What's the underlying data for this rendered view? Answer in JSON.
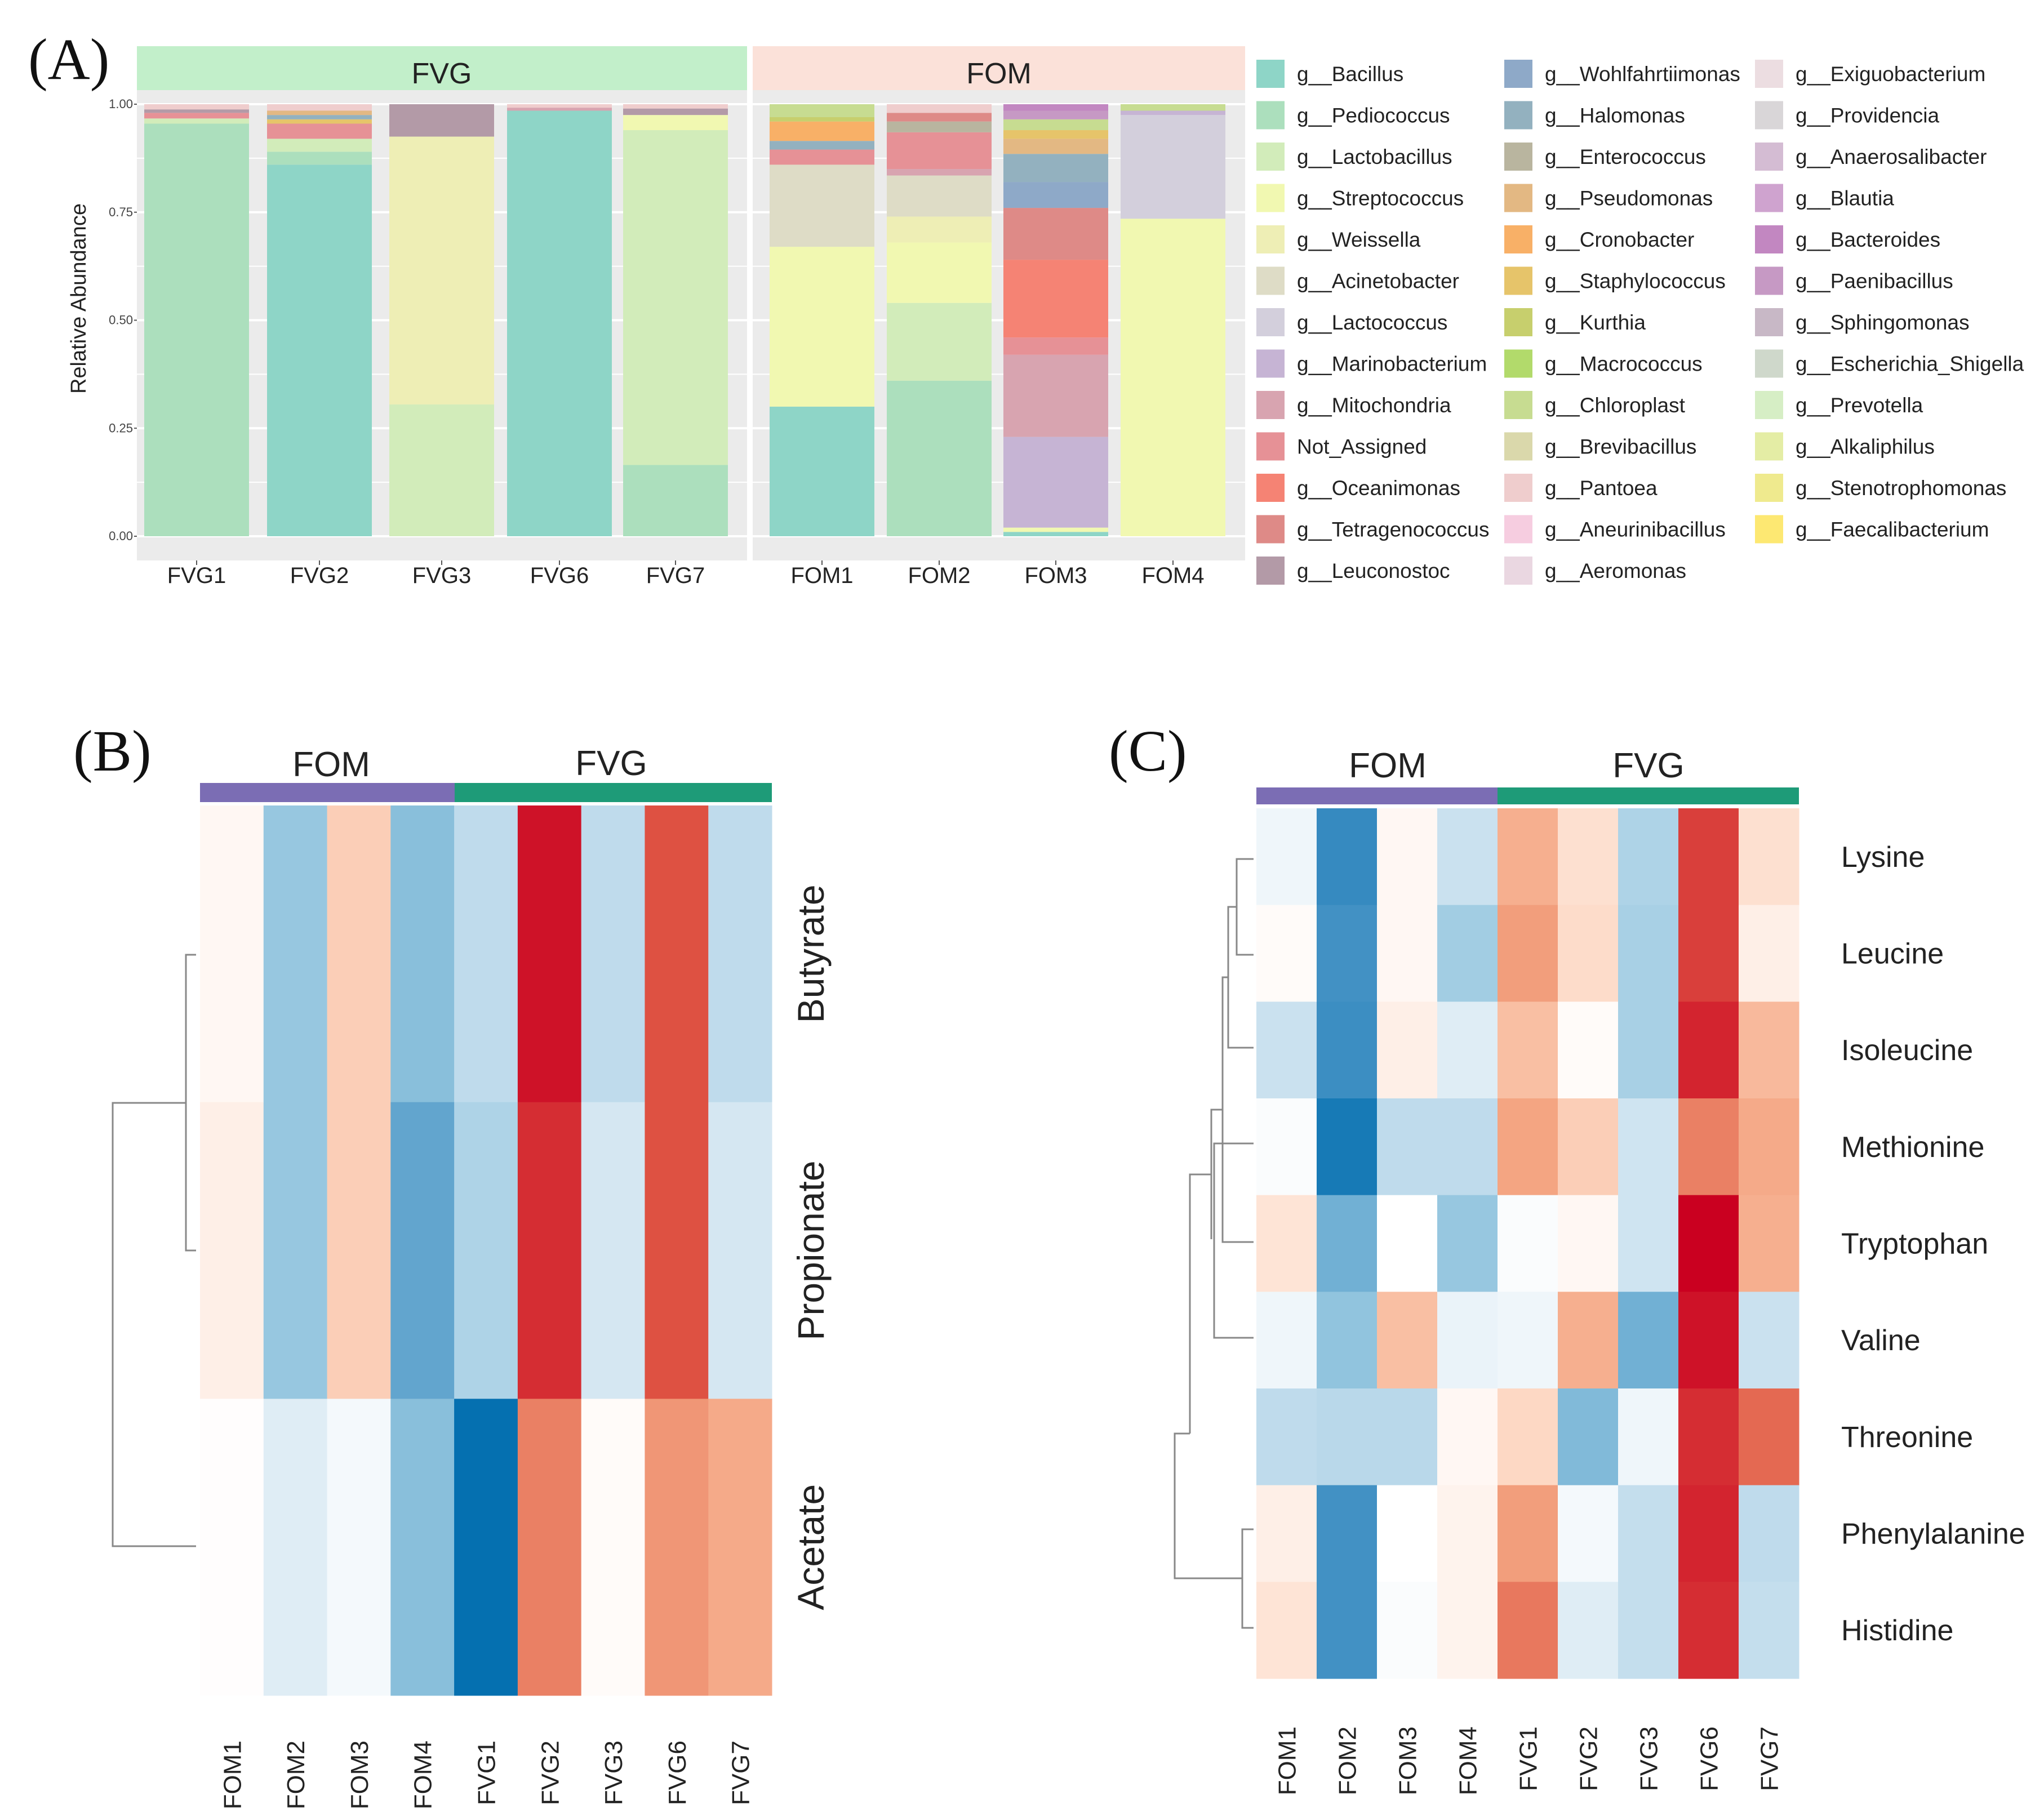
{
  "panels": {
    "a_label": "(A)",
    "b_label": "(B)",
    "c_label": "(C)"
  },
  "colors": {
    "fvg_strip": "#c2efca",
    "fom_strip": "#fbe1d9",
    "fom_bar": "#7b6db4",
    "fvg_bar": "#1e9b78",
    "panel_bg": "#ebebeb",
    "grid": "#ffffff"
  },
  "chart_data": [
    {
      "type": "bar",
      "stacked": true,
      "title": "",
      "ylabel": "Relative Abundance",
      "xlabel": "",
      "ylim": [
        0,
        1
      ],
      "yticks": [
        "0.00",
        "0.25",
        "0.50",
        "0.75",
        "1.00"
      ],
      "facets": [
        {
          "name": "FVG",
          "samples": [
            "FVG1",
            "FVG2",
            "FVG3",
            "FVG6",
            "FVG7"
          ]
        },
        {
          "name": "FOM",
          "samples": [
            "FOM1",
            "FOM2",
            "FOM3",
            "FOM4"
          ]
        }
      ],
      "legend": [
        {
          "name": "g__Bacillus",
          "color": "#8ed5c7"
        },
        {
          "name": "g__Pediococcus",
          "color": "#acdfbd"
        },
        {
          "name": "g__Lactobacillus",
          "color": "#d2ecba"
        },
        {
          "name": "g__Streptococcus",
          "color": "#f1f8b1"
        },
        {
          "name": "g__Weissella",
          "color": "#eeeeb5"
        },
        {
          "name": "g__Acinetobacter",
          "color": "#dedcc6"
        },
        {
          "name": "g__Lactococcus",
          "color": "#d3cfdc"
        },
        {
          "name": "g__Marinobacterium",
          "color": "#c6b4d4"
        },
        {
          "name": "g__Mitochondria",
          "color": "#d8a4b0"
        },
        {
          "name": "Not_Assigned",
          "color": "#e69196"
        },
        {
          "name": "g__Oceanimonas",
          "color": "#f58374"
        },
        {
          "name": "g__Tetragenococcus",
          "color": "#de8a87"
        },
        {
          "name": "g__Leuconostoc",
          "color": "#b39aa7"
        },
        {
          "name": "g__Wohlfahrtiimonas",
          "color": "#8ea9c8"
        },
        {
          "name": "g__Halomonas",
          "color": "#93b1bf"
        },
        {
          "name": "g__Enterococcus",
          "color": "#b9b59f"
        },
        {
          "name": "g__Pseudomonas",
          "color": "#e3b883"
        },
        {
          "name": "g__Cronobacter",
          "color": "#f8b067"
        },
        {
          "name": "g__Staphylococcus",
          "color": "#e6c46a"
        },
        {
          "name": "g__Kurthia",
          "color": "#c7cf6d"
        },
        {
          "name": "g__Macrococcus",
          "color": "#b2da6b"
        },
        {
          "name": "g__Chloroplast",
          "color": "#c7dc91"
        },
        {
          "name": "g__Brevibacillus",
          "color": "#dad8ab"
        },
        {
          "name": "g__Pantoea",
          "color": "#efcdcd"
        },
        {
          "name": "g__Aneurinibacillus",
          "color": "#f6cde0"
        },
        {
          "name": "g__Aeromonas",
          "color": "#ead7e1"
        },
        {
          "name": "g__Exiguobacterium",
          "color": "#ecdde1"
        },
        {
          "name": "g__Providencia",
          "color": "#d9d6d8"
        },
        {
          "name": "g__Anaerosalibacter",
          "color": "#d4bcd3"
        },
        {
          "name": "g__Blautia",
          "color": "#cfa3cf"
        },
        {
          "name": "g__Bacteroides",
          "color": "#c287c1"
        },
        {
          "name": "g__Paenibacillus",
          "color": "#c699c4"
        },
        {
          "name": "g__Sphingomonas",
          "color": "#c8b8c6"
        },
        {
          "name": "g__Escherichia_Shigella",
          "color": "#cfd8cb"
        },
        {
          "name": "g__Prevotella",
          "color": "#d6eec5"
        },
        {
          "name": "g__Alkaliphilus",
          "color": "#e4eda5"
        },
        {
          "name": "g__Stenotrophomonas",
          "color": "#efea8e"
        },
        {
          "name": "g__Faecalibacterium",
          "color": "#fde872"
        }
      ],
      "series": [
        {
          "sample": "FVG1",
          "segments": [
            [
              "g__Pediococcus",
              0.955
            ],
            [
              "g__Lactobacillus",
              0.012
            ],
            [
              "Not_Assigned",
              0.013
            ],
            [
              "g__Leuconostoc",
              0.008
            ],
            [
              "g__Pantoea",
              0.012
            ]
          ]
        },
        {
          "sample": "FVG2",
          "segments": [
            [
              "g__Bacillus",
              0.86
            ],
            [
              "g__Pediococcus",
              0.03
            ],
            [
              "g__Lactobacillus",
              0.03
            ],
            [
              "Not_Assigned",
              0.035
            ],
            [
              "g__Staphylococcus",
              0.01
            ],
            [
              "g__Halomonas",
              0.01
            ],
            [
              "g__Pseudomonas",
              0.01
            ],
            [
              "g__Pantoea",
              0.015
            ]
          ]
        },
        {
          "sample": "FVG3",
          "segments": [
            [
              "g__Lactobacillus",
              0.305
            ],
            [
              "g__Weissella",
              0.62
            ],
            [
              "g__Leuconostoc",
              0.075
            ]
          ]
        },
        {
          "sample": "FVG6",
          "segments": [
            [
              "g__Bacillus",
              0.985
            ],
            [
              "g__Mitochondria",
              0.007
            ],
            [
              "g__Pantoea",
              0.008
            ]
          ]
        },
        {
          "sample": "FVG7",
          "segments": [
            [
              "g__Pediococcus",
              0.165
            ],
            [
              "g__Lactobacillus",
              0.775
            ],
            [
              "g__Streptococcus",
              0.035
            ],
            [
              "g__Leuconostoc",
              0.015
            ],
            [
              "g__Pantoea",
              0.01
            ]
          ]
        },
        {
          "sample": "FOM1",
          "segments": [
            [
              "g__Bacillus",
              0.3
            ],
            [
              "g__Streptococcus",
              0.37
            ],
            [
              "g__Acinetobacter",
              0.19
            ],
            [
              "Not_Assigned",
              0.035
            ],
            [
              "g__Halomonas",
              0.02
            ],
            [
              "g__Cronobacter",
              0.045
            ],
            [
              "g__Kurthia",
              0.01
            ],
            [
              "g__Chloroplast",
              0.03
            ]
          ]
        },
        {
          "sample": "FOM2",
          "segments": [
            [
              "g__Pediococcus",
              0.36
            ],
            [
              "g__Lactobacillus",
              0.18
            ],
            [
              "g__Streptococcus",
              0.14
            ],
            [
              "g__Weissella",
              0.06
            ],
            [
              "g__Acinetobacter",
              0.095
            ],
            [
              "g__Mitochondria",
              0.015
            ],
            [
              "Not_Assigned",
              0.085
            ],
            [
              "g__Enterococcus",
              0.025
            ],
            [
              "g__Tetragenococcus",
              0.02
            ],
            [
              "g__Pantoea",
              0.02
            ]
          ]
        },
        {
          "sample": "FOM3",
          "segments": [
            [
              "g__Bacillus",
              0.01
            ],
            [
              "g__Streptococcus",
              0.01
            ],
            [
              "g__Marinobacterium",
              0.21
            ],
            [
              "g__Mitochondria",
              0.19
            ],
            [
              "Not_Assigned",
              0.04
            ],
            [
              "g__Oceanimonas",
              0.18
            ],
            [
              "g__Tetragenococcus",
              0.12
            ],
            [
              "g__Wohlfahrtiimonas",
              0.06
            ],
            [
              "g__Halomonas",
              0.065
            ],
            [
              "g__Pseudomonas",
              0.035
            ],
            [
              "g__Staphylococcus",
              0.02
            ],
            [
              "g__Chloroplast",
              0.025
            ],
            [
              "g__Paenibacillus",
              0.02
            ],
            [
              "g__Bacteroides",
              0.015
            ]
          ]
        },
        {
          "sample": "FOM4",
          "segments": [
            [
              "g__Streptococcus",
              0.735
            ],
            [
              "g__Lactococcus",
              0.24
            ],
            [
              "g__Marinobacterium",
              0.01
            ],
            [
              "g__Chloroplast",
              0.015
            ]
          ]
        }
      ]
    },
    {
      "type": "heatmap",
      "title": "",
      "groups": [
        {
          "name": "FOM",
          "count": 4
        },
        {
          "name": "FVG",
          "count": 5
        }
      ],
      "columns": [
        "FOM1",
        "FOM2",
        "FOM3",
        "FOM4",
        "FVG1",
        "FVG2",
        "FVG3",
        "FVG6",
        "FVG7"
      ],
      "rows": [
        "Butyrate",
        "Propionate",
        "Acetate"
      ],
      "color_range": [
        -2,
        2
      ],
      "values": [
        [
          0.1,
          -0.95,
          0.6,
          -1.05,
          -0.6,
          1.9,
          -0.6,
          1.55,
          -0.6
        ],
        [
          0.2,
          -0.95,
          0.6,
          -1.3,
          -0.75,
          1.75,
          -0.4,
          1.55,
          -0.4
        ],
        [
          0.02,
          -0.3,
          -0.1,
          -1.05,
          -2.0,
          1.25,
          0.05,
          1.1,
          0.95
        ]
      ]
    },
    {
      "type": "heatmap",
      "title": "",
      "groups": [
        {
          "name": "FOM",
          "count": 4
        },
        {
          "name": "FVG",
          "count": 5
        }
      ],
      "columns": [
        "FOM1",
        "FOM2",
        "FOM3",
        "FOM4",
        "FVG1",
        "FVG2",
        "FVG3",
        "FVG6",
        "FVG7"
      ],
      "rows": [
        "Lysine",
        "Leucine",
        "Isoleucine",
        "Methionine",
        "Tryptophan",
        "Valine",
        "Threonine",
        "Phenylalanine",
        "Histidine"
      ],
      "color_range": [
        -2,
        2
      ],
      "values": [
        [
          -0.15,
          -1.6,
          0.1,
          -0.5,
          0.9,
          0.4,
          -0.75,
          1.65,
          0.4
        ],
        [
          0.05,
          -1.5,
          0.1,
          -0.85,
          1.05,
          0.45,
          -0.8,
          1.65,
          0.2
        ],
        [
          -0.5,
          -1.55,
          0.2,
          -0.3,
          0.75,
          0.05,
          -0.8,
          1.8,
          0.8
        ],
        [
          -0.05,
          -1.85,
          -0.6,
          -0.6,
          1.0,
          0.6,
          -0.45,
          1.25,
          0.95
        ],
        [
          0.35,
          -1.2,
          0.0,
          -0.95,
          -0.05,
          0.1,
          -0.45,
          2.0,
          0.9
        ],
        [
          -0.15,
          -1.0,
          0.75,
          -0.2,
          -0.15,
          0.9,
          -1.2,
          1.9,
          -0.5
        ],
        [
          -0.6,
          -0.65,
          -0.65,
          0.1,
          0.5,
          -1.1,
          -0.15,
          1.75,
          1.4
        ],
        [
          0.2,
          -1.5,
          0.0,
          0.15,
          1.05,
          -0.1,
          -0.55,
          1.8,
          -0.6
        ],
        [
          0.35,
          -1.5,
          -0.05,
          0.15,
          1.3,
          -0.3,
          -0.55,
          1.75,
          -0.55
        ]
      ]
    }
  ]
}
